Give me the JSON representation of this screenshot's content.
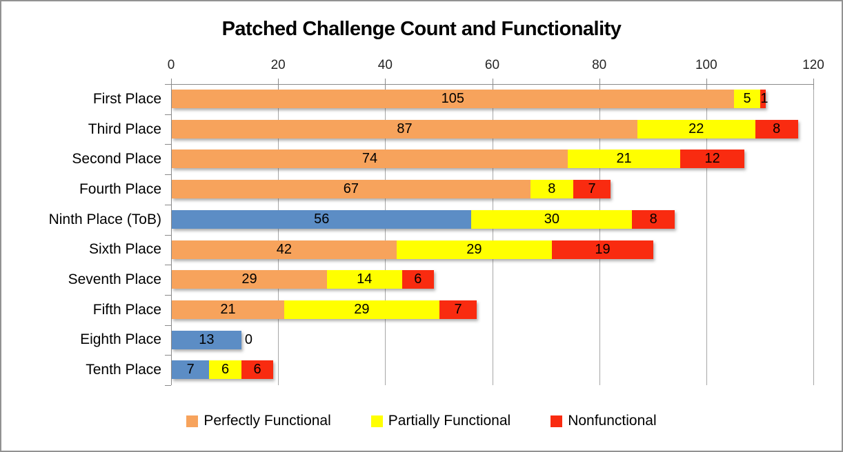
{
  "window": {
    "background": "#FFFFFF",
    "border_color": "#929292"
  },
  "chart_data": {
    "type": "bar",
    "orientation": "horizontal",
    "stacked": true,
    "title": "Patched Challenge Count and Functionality",
    "x_axis": {
      "position": "top",
      "min": 0,
      "max": 120,
      "tick_interval": 20,
      "tick_labels": [
        "0",
        "20",
        "40",
        "60",
        "80",
        "100",
        "120"
      ]
    },
    "categories": [
      "First Place",
      "Third Place",
      "Second Place",
      "Fourth Place",
      "Ninth Place (ToB)",
      "Sixth Place",
      "Seventh Place",
      "Fifth Place",
      "Eighth Place",
      "Tenth Place"
    ],
    "series": [
      {
        "name": "Perfectly Functional",
        "color": "#F7A35C",
        "values": [
          105,
          87,
          74,
          67,
          56,
          42,
          29,
          21,
          13,
          7
        ],
        "point_colors": [
          null,
          null,
          null,
          null,
          "#5C8DC5",
          null,
          null,
          null,
          "#5C8DC5",
          "#5C8DC5"
        ]
      },
      {
        "name": "Partially Functional",
        "color": "#FFFF00",
        "values": [
          5,
          22,
          21,
          8,
          30,
          29,
          14,
          29,
          0,
          6
        ]
      },
      {
        "name": "Nonfunctional",
        "color": "#F92B10",
        "values": [
          1,
          8,
          12,
          7,
          8,
          19,
          6,
          7,
          null,
          6
        ]
      }
    ],
    "data_labels": true,
    "gridlines": {
      "vertical": true,
      "color": "#A6A6A6"
    },
    "axis_color": "#898989",
    "legend": {
      "position": "bottom",
      "entries": [
        "Perfectly Functional",
        "Partially Functional",
        "Nonfunctional"
      ]
    }
  }
}
